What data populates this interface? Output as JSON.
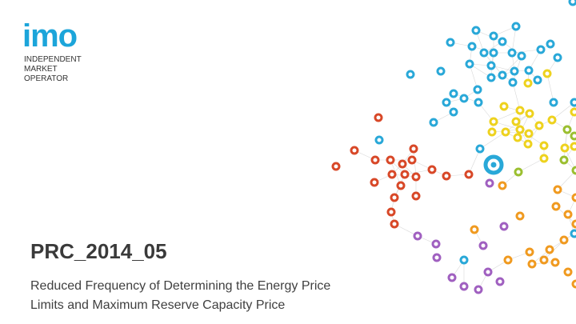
{
  "logo": {
    "mark": "imo",
    "lines": [
      "INDEPENDENT",
      "MARKET",
      "OPERATOR"
    ]
  },
  "title": "PRC_2014_05",
  "subtitle": [
    "Reduced Frequency of Determining the Energy Price",
    "Limits and Maximum Reserve Capacity Price"
  ]
}
